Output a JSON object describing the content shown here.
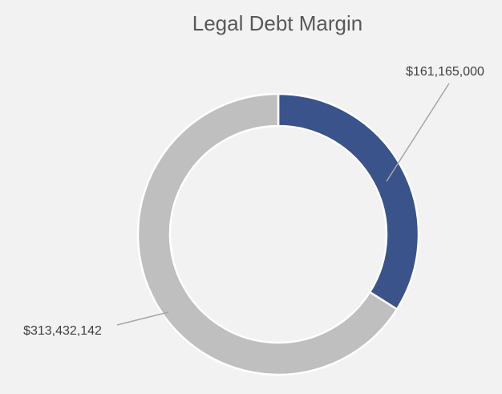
{
  "chart_data": {
    "type": "donut",
    "title": "Legal Debt Margin",
    "values": [
      161165000,
      313432142
    ],
    "value_labels": [
      "$161,165,000",
      "$313,432,142"
    ],
    "colors": [
      "#3a538b",
      "#bfbfbf"
    ]
  }
}
